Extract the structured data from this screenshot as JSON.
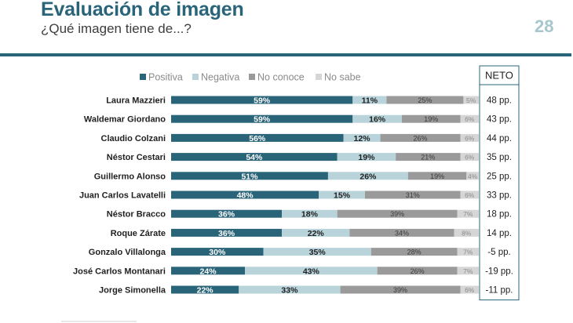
{
  "header": {
    "title": "Evaluación de imagen",
    "subtitle": "¿Qué imagen tiene de...?",
    "page_number": "28"
  },
  "colors": {
    "positiva": "#2a6478",
    "negativa": "#b8d3da",
    "no_conoce": "#9a9a9a",
    "no_sabe": "#d6d6d6",
    "text_dark": "#1f1f1f",
    "neto_border": "#2a6478"
  },
  "chart_data": {
    "type": "bar",
    "orientation": "horizontal",
    "stacked": true,
    "legend_position": "top",
    "xlim": [
      0,
      100
    ],
    "grid": false,
    "categories": [
      "Laura Mazzieri",
      "Waldemar Giordano",
      "Claudio Colzani",
      "Néstor Cestari",
      "Guillermo Alonso",
      "Juan Carlos Lavatelli",
      "Néstor Bracco",
      "Roque Zárate",
      "Gonzalo Villalonga",
      "José Carlos Montanari",
      "Jorge Simonella"
    ],
    "series": [
      {
        "key": "positiva",
        "name": "Positiva",
        "values": [
          59,
          59,
          56,
          54,
          51,
          48,
          36,
          36,
          30,
          24,
          22
        ]
      },
      {
        "key": "negativa",
        "name": "Negativa",
        "values": [
          11,
          16,
          12,
          19,
          26,
          15,
          18,
          22,
          35,
          43,
          33
        ]
      },
      {
        "key": "no_conoce",
        "name": "No conoce",
        "values": [
          25,
          19,
          26,
          21,
          19,
          31,
          39,
          34,
          28,
          26,
          39
        ]
      },
      {
        "key": "no_sabe",
        "name": "No sabe",
        "values": [
          5,
          6,
          6,
          6,
          4,
          6,
          7,
          8,
          7,
          7,
          6
        ]
      }
    ],
    "data_labels": [
      [
        "59%",
        "11%",
        "25%",
        "5%"
      ],
      [
        "59%",
        "16%",
        "19%",
        "6%"
      ],
      [
        "56%",
        "12%",
        "26%",
        "6%"
      ],
      [
        "54%",
        "19%",
        "21%",
        "6%"
      ],
      [
        "51%",
        "26%",
        "19%",
        "4%"
      ],
      [
        "48%",
        "15%",
        "31%",
        "6%"
      ],
      [
        "36%",
        "18%",
        "39%",
        "7%"
      ],
      [
        "36%",
        "22%",
        "34%",
        "8%"
      ],
      [
        "30%",
        "35%",
        "28%",
        "7%"
      ],
      [
        "24%",
        "43%",
        "26%",
        "7%"
      ],
      [
        "22%",
        "33%",
        "39%",
        "6%"
      ]
    ],
    "neto": {
      "header": "NETO",
      "values": [
        "48 pp.",
        "43 pp.",
        "44 pp.",
        "35 pp.",
        "25 pp.",
        "33 pp.",
        "18 pp.",
        "14 pp.",
        "-5 pp.",
        "-19 pp.",
        "-11 pp."
      ]
    }
  }
}
